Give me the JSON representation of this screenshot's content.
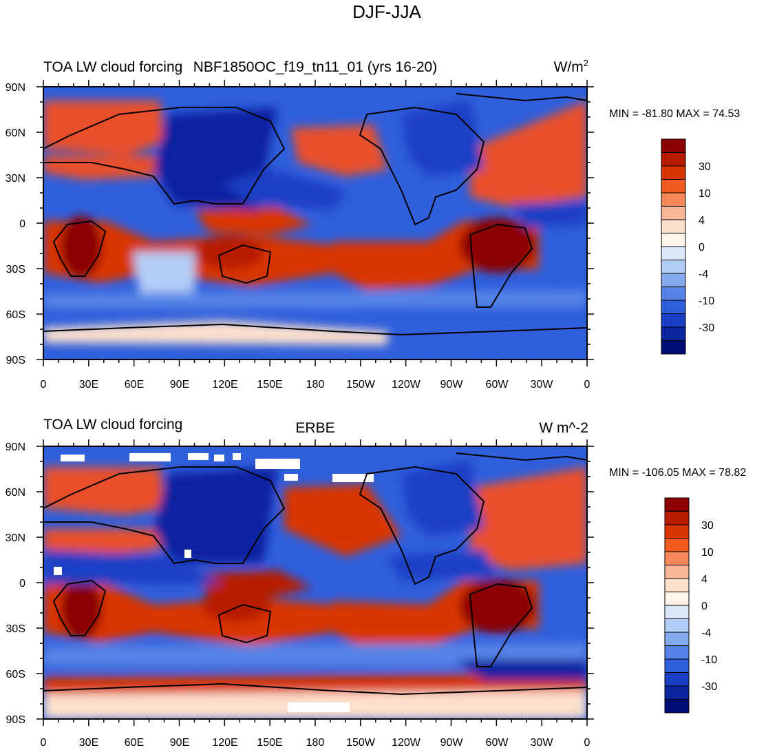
{
  "figure": {
    "main_title": "DJF-JJA",
    "colorbar_levels": [
      "30",
      "10",
      "4",
      "0",
      "-4",
      "-10",
      "-30"
    ],
    "colorbar_colors": [
      "#8b0000",
      "#b71a00",
      "#d93500",
      "#f25a1f",
      "#f7885a",
      "#fbb899",
      "#fde0cc",
      "#fff4e8",
      "#dce9fb",
      "#b2cdf7",
      "#84aaf0",
      "#5684e6",
      "#2f5fdc",
      "#1a3fc4",
      "#0b24a0",
      "#020c78"
    ],
    "map_region": {
      "lat_range": [
        -90,
        90
      ],
      "lon_range": [
        0,
        360
      ]
    },
    "lat_ticks": [
      "90N",
      "60N",
      "30N",
      "0",
      "30S",
      "60S",
      "90S"
    ],
    "lon_ticks": [
      "0",
      "30E",
      "60E",
      "90E",
      "120E",
      "150E",
      "180",
      "150W",
      "120W",
      "90W",
      "60W",
      "30W",
      "0"
    ]
  },
  "chart_data": [
    {
      "type": "heatmap",
      "title_left": "TOA LW cloud forcing",
      "title_center": "NBF1850OC_f19_tn11_01 (yrs 16-20)",
      "units": "W/m",
      "units_sup": "2",
      "min_max_text": "MIN = -81.80 MAX =  74.53",
      "min": -81.8,
      "max": 74.53,
      "xlabel": "",
      "ylabel": "",
      "variable": "TOA LW cloud forcing (DJF minus JJA)"
    },
    {
      "type": "heatmap",
      "title_left": "TOA LW cloud forcing",
      "title_center": "ERBE",
      "units": "W m^-2",
      "units_sup": "",
      "min_max_text": "MIN = -106.05 MAX =  78.82",
      "min": -106.05,
      "max": 78.82,
      "xlabel": "",
      "ylabel": "",
      "variable": "TOA LW cloud forcing (DJF minus JJA)"
    }
  ]
}
